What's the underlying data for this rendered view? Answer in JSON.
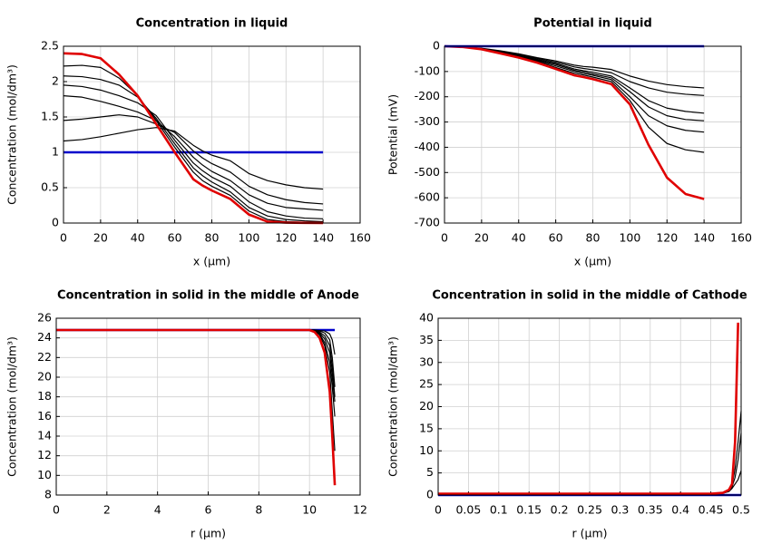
{
  "chart_data": [
    {
      "type": "line",
      "title": "Concentration in liquid",
      "xlabel": "x (µm)",
      "ylabel": "Concentration (mol/dm³)",
      "x": [
        0,
        10,
        20,
        30,
        40,
        50,
        60,
        70,
        75,
        80,
        90,
        100,
        110,
        120,
        130,
        140
      ],
      "series": [
        {
          "color": "#0000cc",
          "values": [
            1,
            1,
            1,
            1,
            1,
            1,
            1,
            1,
            1,
            1,
            1,
            1,
            1,
            1,
            1,
            1
          ]
        },
        {
          "color": "#000000",
          "values": [
            1.16,
            1.18,
            1.22,
            1.27,
            1.32,
            1.35,
            1.3,
            1.1,
            1.02,
            0.96,
            0.88,
            0.7,
            0.6,
            0.54,
            0.5,
            0.48
          ]
        },
        {
          "color": "#000000",
          "values": [
            1.45,
            1.47,
            1.5,
            1.53,
            1.5,
            1.4,
            1.28,
            1.02,
            0.92,
            0.84,
            0.72,
            0.52,
            0.4,
            0.33,
            0.29,
            0.27
          ]
        },
        {
          "color": "#000000",
          "values": [
            1.8,
            1.78,
            1.72,
            1.65,
            1.57,
            1.45,
            1.22,
            0.93,
            0.82,
            0.73,
            0.6,
            0.4,
            0.28,
            0.22,
            0.2,
            0.18
          ]
        },
        {
          "color": "#000000",
          "values": [
            1.95,
            1.93,
            1.88,
            1.8,
            1.7,
            1.52,
            1.17,
            0.85,
            0.74,
            0.65,
            0.52,
            0.3,
            0.16,
            0.1,
            0.07,
            0.06
          ]
        },
        {
          "color": "#000000",
          "values": [
            2.08,
            2.07,
            2.03,
            1.95,
            1.78,
            1.48,
            1.12,
            0.78,
            0.67,
            0.58,
            0.44,
            0.22,
            0.1,
            0.05,
            0.03,
            0.02
          ]
        },
        {
          "color": "#000000",
          "values": [
            2.22,
            2.23,
            2.2,
            2.05,
            1.8,
            1.45,
            1.07,
            0.72,
            0.6,
            0.52,
            0.39,
            0.17,
            0.05,
            0.02,
            0.01,
            0.01
          ]
        },
        {
          "color": "#e00000",
          "values": [
            2.4,
            2.39,
            2.33,
            2.1,
            1.8,
            1.4,
            1,
            0.62,
            0.53,
            0.46,
            0.34,
            0.12,
            0.02,
            0.005,
            0.002,
            0
          ]
        }
      ],
      "xlim": [
        0,
        160
      ],
      "ylim": [
        0,
        2.5
      ],
      "xticks": [
        0,
        20,
        40,
        60,
        80,
        100,
        120,
        140,
        160
      ],
      "yticks": [
        0,
        0.5,
        1,
        1.5,
        2,
        2.5
      ],
      "grid": true
    },
    {
      "type": "line",
      "title": "Potential in liquid",
      "xlabel": "x (µm)",
      "ylabel": "Potential (mV)",
      "x": [
        0,
        10,
        20,
        30,
        40,
        50,
        60,
        70,
        75,
        80,
        90,
        100,
        110,
        120,
        130,
        140
      ],
      "series": [
        {
          "color": "#000000",
          "values": [
            0,
            -2,
            -8,
            -18,
            -30,
            -45,
            -58,
            -75,
            -80,
            -83,
            -92,
            -118,
            -138,
            -152,
            -160,
            -165
          ]
        },
        {
          "color": "#000000",
          "values": [
            0,
            -2,
            -9,
            -20,
            -33,
            -48,
            -63,
            -82,
            -88,
            -93,
            -105,
            -140,
            -165,
            -182,
            -190,
            -195
          ]
        },
        {
          "color": "#000000",
          "values": [
            0,
            -2,
            -10,
            -22,
            -36,
            -52,
            -68,
            -90,
            -97,
            -103,
            -118,
            -165,
            -215,
            -245,
            -258,
            -265
          ]
        },
        {
          "color": "#000000",
          "values": [
            0,
            -3,
            -10,
            -24,
            -38,
            -55,
            -72,
            -95,
            -102,
            -110,
            -125,
            -180,
            -240,
            -275,
            -290,
            -295
          ]
        },
        {
          "color": "#000000",
          "values": [
            0,
            -3,
            -11,
            -25,
            -40,
            -58,
            -78,
            -100,
            -108,
            -115,
            -132,
            -200,
            -275,
            -315,
            -333,
            -340
          ]
        },
        {
          "color": "#000000",
          "values": [
            0,
            -3,
            -11,
            -26,
            -42,
            -61,
            -84,
            -107,
            -114,
            -122,
            -140,
            -215,
            -320,
            -385,
            -410,
            -420
          ]
        },
        {
          "color": "#e00000",
          "values": [
            0,
            -3,
            -12,
            -28,
            -45,
            -65,
            -90,
            -115,
            -122,
            -130,
            -150,
            -230,
            -390,
            -520,
            -585,
            -605
          ]
        },
        {
          "color": "#0000cc",
          "values": [
            0,
            0,
            0,
            0,
            0,
            0,
            0,
            0,
            0,
            0,
            0,
            0,
            0,
            0,
            0,
            0
          ]
        }
      ],
      "xlim": [
        0,
        160
      ],
      "ylim": [
        -700,
        0
      ],
      "xticks": [
        0,
        20,
        40,
        60,
        80,
        100,
        120,
        140,
        160
      ],
      "yticks": [
        -700,
        -600,
        -500,
        -400,
        -300,
        -200,
        -100,
        0
      ],
      "grid": true
    },
    {
      "type": "line",
      "title": "Concentration in solid in the middle of Anode",
      "xlabel": "r (µm)",
      "ylabel": "Concentration (mol/dm³)",
      "x": [
        0,
        2,
        4,
        6,
        8,
        10,
        10.2,
        10.4,
        10.6,
        10.8,
        10.9,
        11
      ],
      "series": [
        {
          "color": "#0000cc",
          "values": [
            24.8,
            24.8,
            24.8,
            24.8,
            24.8,
            24.8,
            24.8,
            24.8,
            24.8,
            24.8,
            24.8,
            24.8
          ]
        },
        {
          "color": "#000000",
          "values": [
            24.8,
            24.8,
            24.8,
            24.8,
            24.8,
            24.8,
            24.8,
            24.75,
            24.7,
            24.4,
            23.8,
            22.3
          ]
        },
        {
          "color": "#000000",
          "values": [
            24.8,
            24.8,
            24.8,
            24.8,
            24.8,
            24.8,
            24.8,
            24.7,
            24.5,
            23.8,
            22,
            19
          ]
        },
        {
          "color": "#000000",
          "values": [
            24.8,
            24.8,
            24.8,
            24.8,
            24.8,
            24.8,
            24.75,
            24.6,
            24.2,
            23.2,
            21,
            18
          ]
        },
        {
          "color": "#000000",
          "values": [
            24.8,
            24.8,
            24.8,
            24.8,
            24.8,
            24.8,
            24.7,
            24.5,
            23.9,
            22.5,
            20,
            17.5
          ]
        },
        {
          "color": "#000000",
          "values": [
            24.8,
            24.8,
            24.8,
            24.8,
            24.8,
            24.8,
            24.7,
            24.4,
            23.5,
            21.5,
            19,
            16
          ]
        },
        {
          "color": "#000000",
          "values": [
            24.8,
            24.8,
            24.8,
            24.8,
            24.8,
            24.8,
            24.7,
            24.3,
            23.2,
            20.5,
            16.5,
            12.5
          ]
        },
        {
          "color": "#e00000",
          "values": [
            24.8,
            24.8,
            24.8,
            24.8,
            24.8,
            24.8,
            24.6,
            24,
            22.5,
            18.5,
            14,
            9
          ]
        }
      ],
      "xlim": [
        0,
        12
      ],
      "ylim": [
        8,
        26
      ],
      "xticks": [
        0,
        2,
        4,
        6,
        8,
        10,
        12
      ],
      "yticks": [
        8,
        10,
        12,
        14,
        16,
        18,
        20,
        22,
        24,
        26
      ],
      "grid": true
    },
    {
      "type": "line",
      "title": "Concentration in solid in the middle of Cathode",
      "xlabel": "r (µm)",
      "ylabel": "Concentration (mol/dm³)",
      "x": [
        0,
        0.1,
        0.2,
        0.3,
        0.4,
        0.45,
        0.47,
        0.48,
        0.485,
        0.49,
        0.495,
        0.5
      ],
      "series": [
        {
          "color": "#0000cc",
          "values": [
            0,
            0,
            0,
            0,
            0,
            0,
            0,
            0,
            0,
            0,
            0,
            0
          ]
        },
        {
          "color": "#000000",
          "values": [
            0.3,
            0.3,
            0.3,
            0.3,
            0.3,
            0.3,
            0.4,
            0.8,
            1.5,
            2.5,
            3.5,
            5.5
          ]
        },
        {
          "color": "#000000",
          "values": [
            0.3,
            0.3,
            0.3,
            0.3,
            0.3,
            0.3,
            0.4,
            0.9,
            1.8,
            4,
            8,
            14
          ]
        },
        {
          "color": "#000000",
          "values": [
            0.3,
            0.3,
            0.3,
            0.3,
            0.3,
            0.3,
            0.5,
            1,
            2.2,
            6,
            12,
            19
          ]
        },
        {
          "color": "#e00000",
          "values": [
            0.3,
            0.3,
            0.3,
            0.3,
            0.3,
            0.3,
            0.5,
            1.2,
            2.5,
            12,
            39,
            null
          ]
        }
      ],
      "xlim": [
        0,
        0.5
      ],
      "ylim": [
        0,
        40
      ],
      "xticks": [
        0,
        0.05,
        0.1,
        0.15,
        0.2,
        0.25,
        0.3,
        0.35,
        0.4,
        0.45,
        0.5
      ],
      "yticks": [
        0,
        5,
        10,
        15,
        20,
        25,
        30,
        35,
        40
      ],
      "grid": true
    }
  ]
}
